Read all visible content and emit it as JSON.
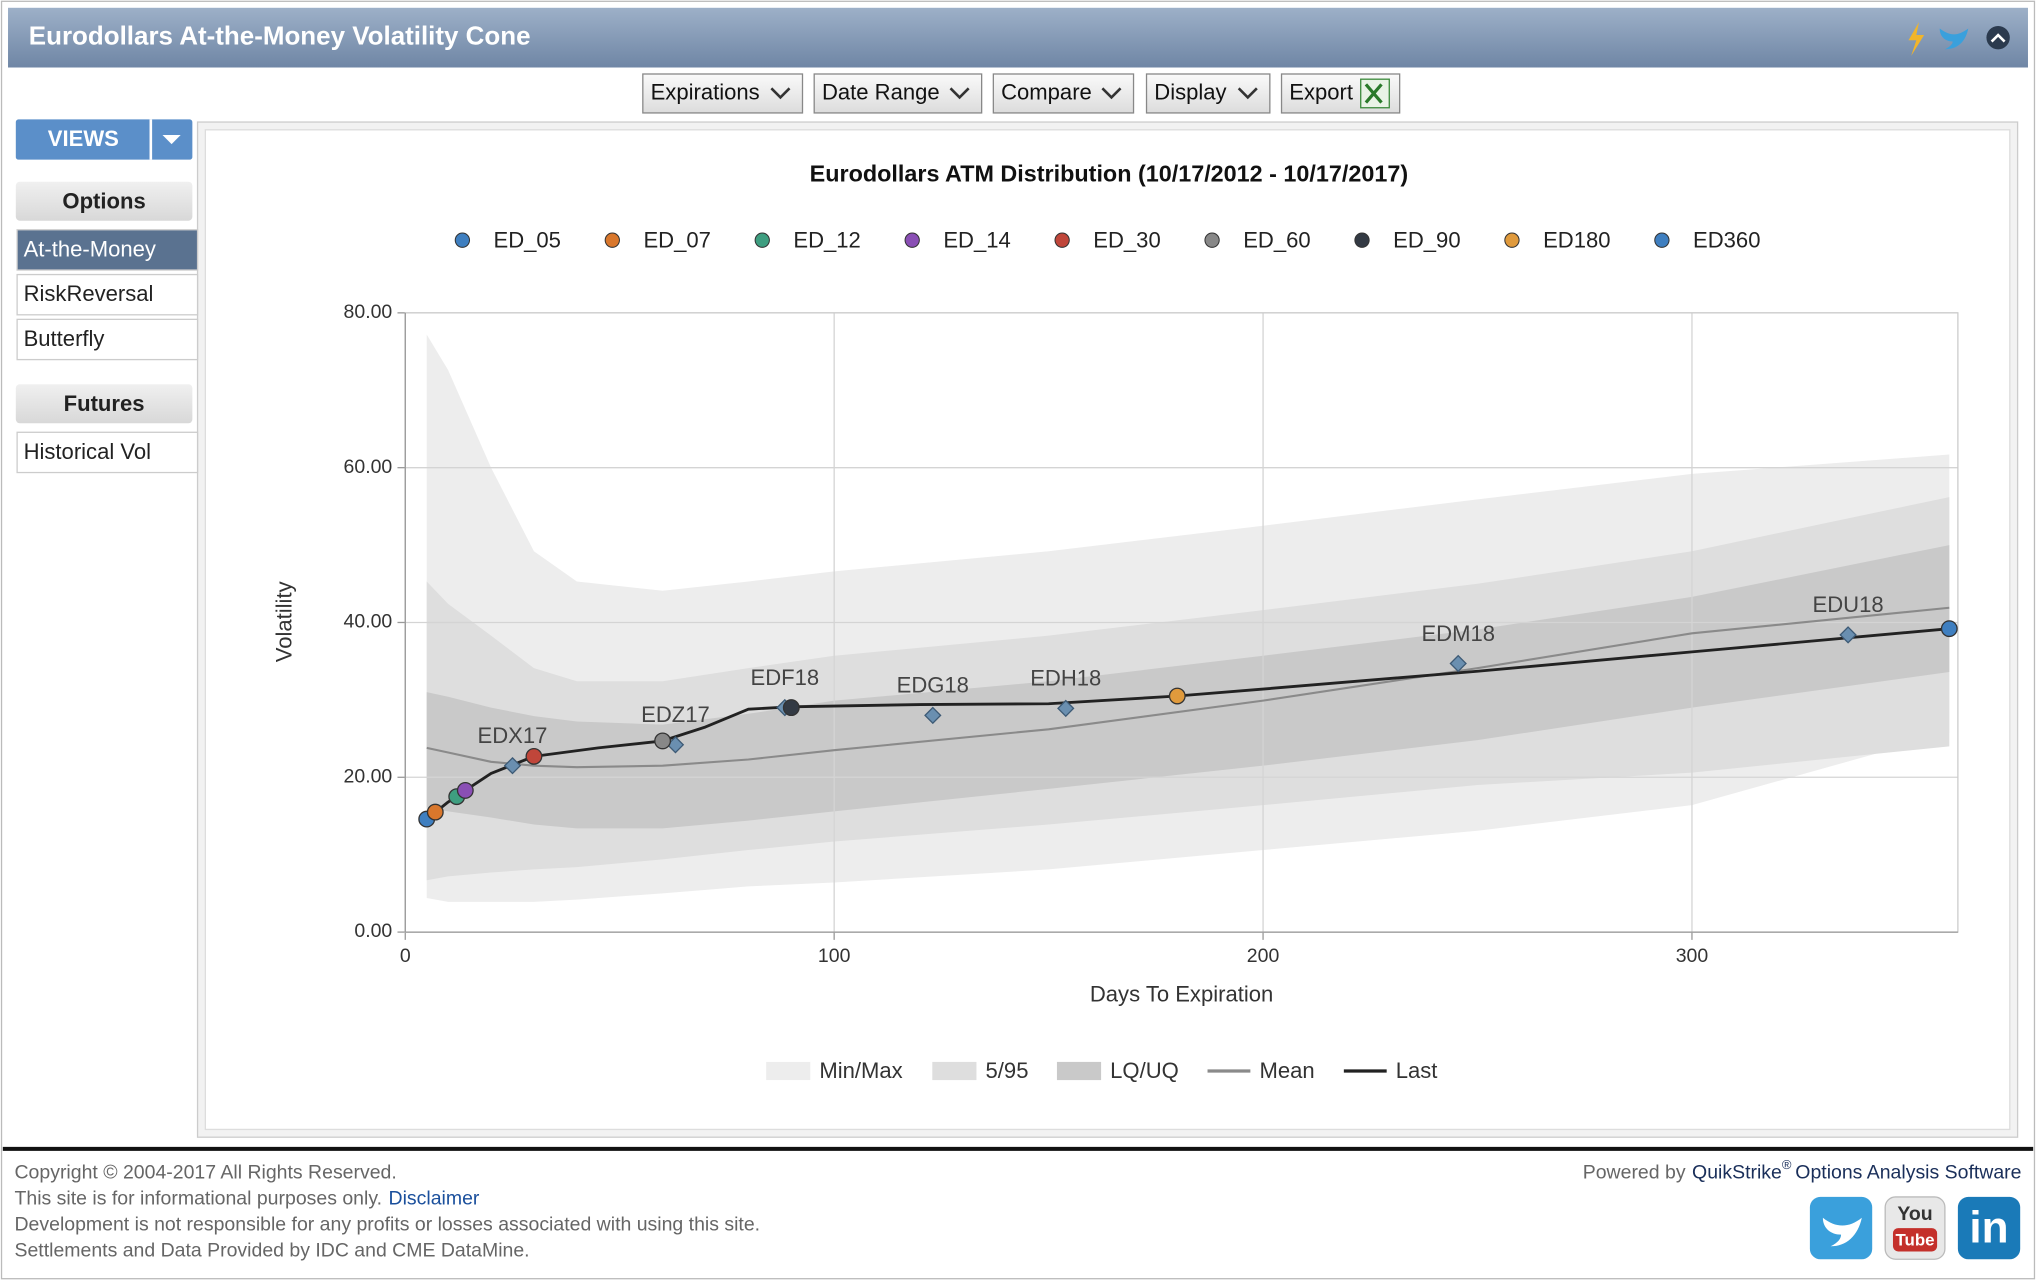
{
  "header": {
    "title": "Eurodollars At-the-Money Volatility Cone"
  },
  "toolbar": [
    "Expirations",
    "Date Range",
    "Compare",
    "Display",
    "Export"
  ],
  "sidebar": {
    "views": "VIEWS",
    "sections": [
      {
        "title": "Options",
        "items": [
          "At-the-Money",
          "RiskReversal",
          "Butterfly"
        ]
      },
      {
        "title": "Futures",
        "items": [
          "Historical Vol"
        ]
      }
    ]
  },
  "chart_data": {
    "type": "cone",
    "title": "Eurodollars ATM Distribution (10/17/2012 - 10/17/2017)",
    "x_label": "Days To Expiration",
    "y_label": "Volatility",
    "xlim": [
      0,
      362
    ],
    "xticks": [
      0,
      100,
      200,
      300
    ],
    "ylim": [
      0,
      80
    ],
    "yticks": [
      {
        "value": 0,
        "label": "0.00"
      },
      {
        "value": 20,
        "label": "20.00"
      },
      {
        "value": 40,
        "label": "40.00"
      },
      {
        "value": 60,
        "label": "60.00"
      },
      {
        "value": 80,
        "label": "80.00"
      }
    ],
    "grid": true,
    "x": [
      5,
      10,
      20,
      30,
      40,
      60,
      80,
      100,
      150,
      200,
      250,
      300,
      360
    ],
    "bands": [
      {
        "name": "Min/Max",
        "color": "#ededed",
        "upper": [
          77.2,
          72.6,
          60,
          49.2,
          45.3,
          44.1,
          45.3,
          46.6,
          49.2,
          52.5,
          55.9,
          59.2,
          61.7
        ],
        "lower": [
          4.4,
          3.9,
          3.9,
          3.9,
          4.2,
          5.0,
          5.9,
          6.4,
          8.1,
          10.6,
          13.1,
          16.4,
          25.7
        ]
      },
      {
        "name": "5/95",
        "color": "#dedede",
        "upper": [
          45.3,
          42.4,
          38.3,
          34.1,
          32.4,
          32.4,
          34.1,
          35.7,
          38.3,
          41.6,
          45,
          49.2,
          56.2
        ],
        "lower": [
          6.7,
          7.2,
          7.7,
          8.1,
          8.4,
          9.4,
          10.6,
          11.7,
          13.9,
          16.4,
          19,
          20.6,
          24
        ]
      },
      {
        "name": "LQ/UQ",
        "color": "#c9c9c9",
        "upper": [
          31,
          30.4,
          29,
          27.9,
          27.2,
          26.8,
          28.2,
          29.9,
          32.4,
          35.7,
          39.1,
          43.3,
          50
        ],
        "lower": [
          16.1,
          15.6,
          14.8,
          13.9,
          13.4,
          13.4,
          14.4,
          15.6,
          18.5,
          21.5,
          24.8,
          29,
          33.6
        ]
      }
    ],
    "series": [
      {
        "name": "Mean",
        "color": "#8a8a8a",
        "values": [
          23.8,
          23.2,
          22,
          21.5,
          21.3,
          21.5,
          22.3,
          23.5,
          26.2,
          29.9,
          34.1,
          38.6,
          41.9
        ]
      },
      {
        "name": "Last",
        "color": "#222222",
        "x": [
          5,
          10,
          14,
          20,
          30,
          45,
          60,
          70,
          80,
          90,
          120,
          150,
          180,
          200,
          250,
          300,
          360
        ],
        "values": [
          14.6,
          16.8,
          18.3,
          20.5,
          22.7,
          23.8,
          24.7,
          26.5,
          28.8,
          29.1,
          29.4,
          29.5,
          30.5,
          31.4,
          33.7,
          36.2,
          39.2
        ]
      }
    ],
    "points": [
      {
        "name": "ED_05",
        "color": "#3f7fc0",
        "x": 5,
        "y": 14.6
      },
      {
        "name": "ED_07",
        "color": "#d9772c",
        "x": 7,
        "y": 15.5
      },
      {
        "name": "ED_12",
        "color": "#3e9e80",
        "x": 12,
        "y": 17.5
      },
      {
        "name": "ED_14",
        "color": "#8a4fb5",
        "x": 14,
        "y": 18.3
      },
      {
        "name": "ED_30",
        "color": "#c0463a",
        "x": 30,
        "y": 22.7
      },
      {
        "name": "ED_60",
        "color": "#888888",
        "x": 60,
        "y": 24.7
      },
      {
        "name": "ED_90",
        "color": "#333a44",
        "x": 90,
        "y": 29
      },
      {
        "name": "ED180",
        "color": "#e09a3c",
        "x": 180,
        "y": 30.5
      },
      {
        "name": "ED360",
        "color": "#3f7fc0",
        "x": 360,
        "y": 39.2
      }
    ],
    "annotations": [
      {
        "label": "EDX17",
        "x": 25,
        "y": 21.5
      },
      {
        "label": "EDZ17",
        "x": 63,
        "y": 24.2
      },
      {
        "label": "EDF18",
        "x": 88.5,
        "y": 29
      },
      {
        "label": "EDG18",
        "x": 123,
        "y": 28
      },
      {
        "label": "EDH18",
        "x": 154,
        "y": 28.9
      },
      {
        "label": "EDM18",
        "x": 245.5,
        "y": 34.7
      },
      {
        "label": "EDU18",
        "x": 336.4,
        "y": 38.4
      }
    ]
  },
  "footer": {
    "lines": [
      "Copyright © 2004-2017 All Rights Reserved.",
      "This site is for informational purposes only.",
      "Development is not responsible for any profits or losses associated with using this site.",
      "Settlements and Data Provided by IDC and CME DataMine."
    ],
    "disclaimer": "Disclaimer",
    "powered_by": "Powered by",
    "brand": "QuikStrike",
    "registered": "®",
    "product": "Options Analysis Software",
    "youtube": [
      "You",
      "Tube"
    ],
    "linkedin": "in"
  }
}
